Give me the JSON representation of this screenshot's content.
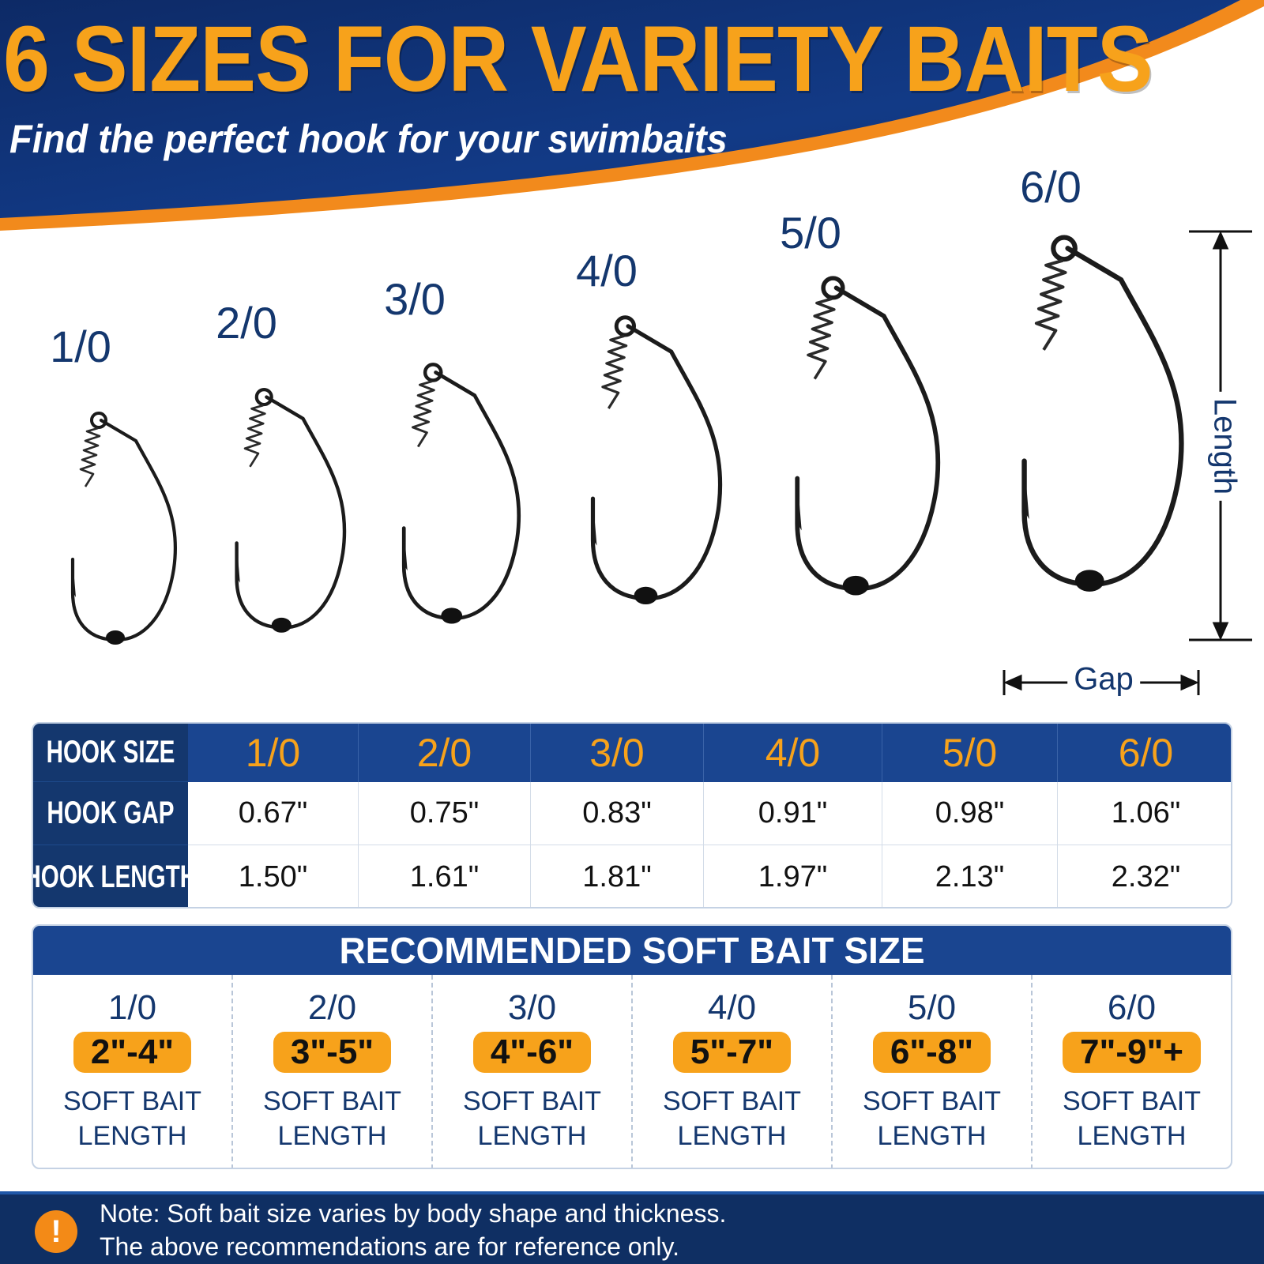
{
  "header": {
    "title": "6 SIZES FOR VARIETY BAITS",
    "subtitle": "Find the perfect hook for your swimbaits"
  },
  "hooks": [
    {
      "size": "1/0"
    },
    {
      "size": "2/0"
    },
    {
      "size": "3/0"
    },
    {
      "size": "4/0"
    },
    {
      "size": "5/0"
    },
    {
      "size": "6/0"
    }
  ],
  "dimensions": {
    "length_label": "Length",
    "gap_label": "Gap"
  },
  "spec_table": {
    "row_headers": [
      "HOOK SIZE",
      "HOOK GAP",
      "HOOK LENGTH"
    ],
    "sizes": [
      "1/0",
      "2/0",
      "3/0",
      "4/0",
      "5/0",
      "6/0"
    ],
    "gaps": [
      "0.67\"",
      "0.75\"",
      "0.83\"",
      "0.91\"",
      "0.98\"",
      "1.06\""
    ],
    "lengths": [
      "1.50\"",
      "1.61\"",
      "1.81\"",
      "1.97\"",
      "2.13\"",
      "2.32\""
    ]
  },
  "bait": {
    "title": "RECOMMENDED SOFT BAIT SIZE",
    "items": [
      {
        "size": "1/0",
        "range": "2\"-4\"",
        "caption": "SOFT BAIT\nLENGTH"
      },
      {
        "size": "2/0",
        "range": "3\"-5\"",
        "caption": "SOFT BAIT\nLENGTH"
      },
      {
        "size": "3/0",
        "range": "4\"-6\"",
        "caption": "SOFT BAIT\nLENGTH"
      },
      {
        "size": "4/0",
        "range": "5\"-7\"",
        "caption": "SOFT BAIT\nLENGTH"
      },
      {
        "size": "5/0",
        "range": "6\"-8\"",
        "caption": "SOFT BAIT\nLENGTH"
      },
      {
        "size": "6/0",
        "range": "7\"-9\"+",
        "caption": "SOFT BAIT\nLENGTH"
      }
    ]
  },
  "footer": {
    "icon": "exclamation-icon",
    "icon_glyph": "!",
    "line1": "Note: Soft bait size varies by body shape and thickness.",
    "line2": "The above recommendations are for reference only."
  },
  "colors": {
    "navy": "#14376e",
    "royal_blue": "#1a4590",
    "orange": "#f7a21b",
    "footer_blue": "#0f2f63"
  }
}
